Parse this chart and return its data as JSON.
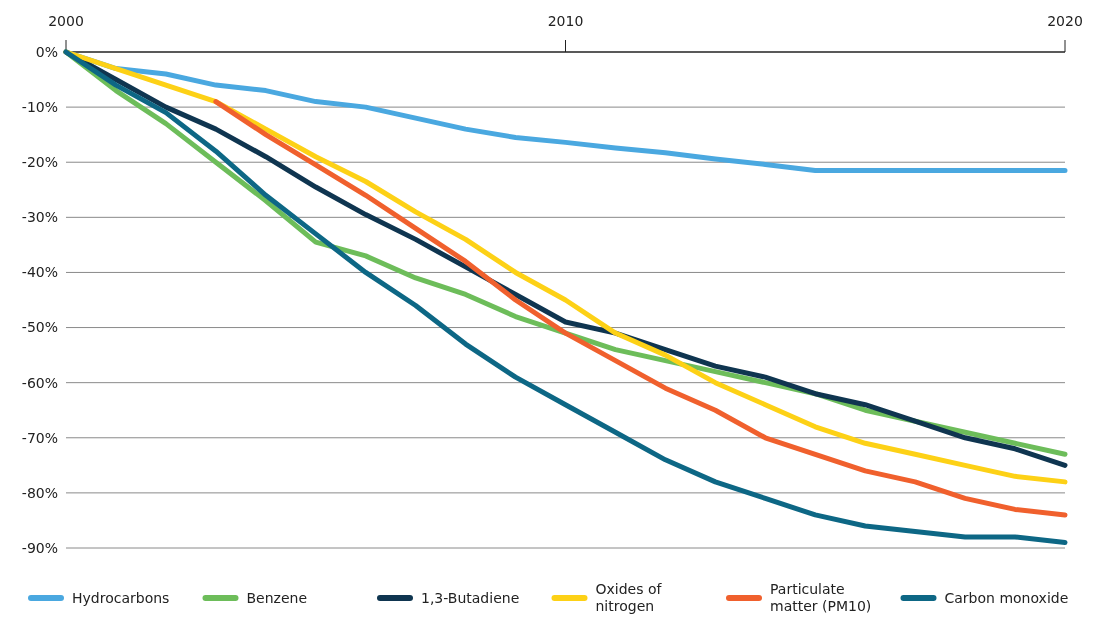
{
  "chart_data": {
    "type": "line",
    "x": [
      2000,
      2001,
      2002,
      2003,
      2004,
      2005,
      2006,
      2007,
      2008,
      2009,
      2010,
      2011,
      2012,
      2013,
      2014,
      2015,
      2016,
      2017,
      2018,
      2019,
      2020
    ],
    "xlim": [
      2000,
      2020
    ],
    "xticks": [
      2000,
      2010,
      2020
    ],
    "ylim": [
      -90,
      0
    ],
    "yticks": [
      {
        "value": 0,
        "label": "0%"
      },
      {
        "value": -10,
        "label": "-10%"
      },
      {
        "value": -20,
        "label": "-20%"
      },
      {
        "value": -30,
        "label": "-30%"
      },
      {
        "value": -40,
        "label": "-40%"
      },
      {
        "value": -50,
        "label": "-50%"
      },
      {
        "value": -60,
        "label": "-60%"
      },
      {
        "value": -70,
        "label": "-70%"
      },
      {
        "value": -80,
        "label": "-80%"
      },
      {
        "value": -90,
        "label": "-90%"
      }
    ],
    "grid": "y",
    "legend": "bottom",
    "marker": "none",
    "line_style": "solid",
    "series": [
      {
        "name": "Hydrocarbons",
        "color": "#4aa8e0",
        "values": [
          0,
          -3,
          -4,
          -6,
          -7,
          -9,
          -10,
          -12,
          -14,
          -15.5,
          -16.4,
          -17.4,
          -18.3,
          -19.4,
          -20.4,
          -21.5,
          -21.5,
          -21.5,
          -21.5,
          -21.5,
          -21.5
        ]
      },
      {
        "name": "Benzene",
        "color": "#6dbd5a",
        "values": [
          0,
          -7,
          -13,
          -20,
          -27,
          -34.5,
          -37,
          -41,
          -44,
          -48,
          -51,
          -54,
          -56,
          -58,
          -60,
          -62,
          -65,
          -67,
          -69,
          -71,
          -73
        ]
      },
      {
        "name": "1,3-Butadiene",
        "color": "#0f3550",
        "values": [
          0,
          -5,
          -10,
          -14,
          -19,
          -24.5,
          -29.5,
          -34,
          -39,
          -44,
          -49,
          -51,
          -54,
          -57,
          -59,
          -62,
          -64,
          -67,
          -70,
          -72,
          -75
        ]
      },
      {
        "name": "Oxides of nitrogen",
        "color": "#fdd116",
        "values": [
          0,
          -3,
          -6,
          -9,
          -14,
          -19,
          -23.5,
          -29,
          -34,
          -40,
          -45,
          -51,
          -55,
          -60,
          -64,
          -68,
          -71,
          -73,
          -75,
          -77,
          -78
        ]
      },
      {
        "name": "Particulate matter (PM10)",
        "color": "#f0602d",
        "values": [
          null,
          null,
          null,
          -9,
          -15,
          -20.5,
          -26,
          -32,
          -38,
          -45,
          -51,
          -56,
          -61,
          -65,
          -70,
          -73,
          -76,
          -78,
          -81,
          -83,
          -84
        ]
      },
      {
        "name": "Carbon monoxide",
        "color": "#0d6785",
        "values": [
          0,
          -6,
          -11,
          -18,
          -26,
          -33,
          -40,
          -46,
          -53,
          -59,
          -64,
          -69,
          -74,
          -78,
          -81,
          -84,
          -86,
          -87,
          -88,
          -88,
          -89
        ]
      }
    ]
  }
}
